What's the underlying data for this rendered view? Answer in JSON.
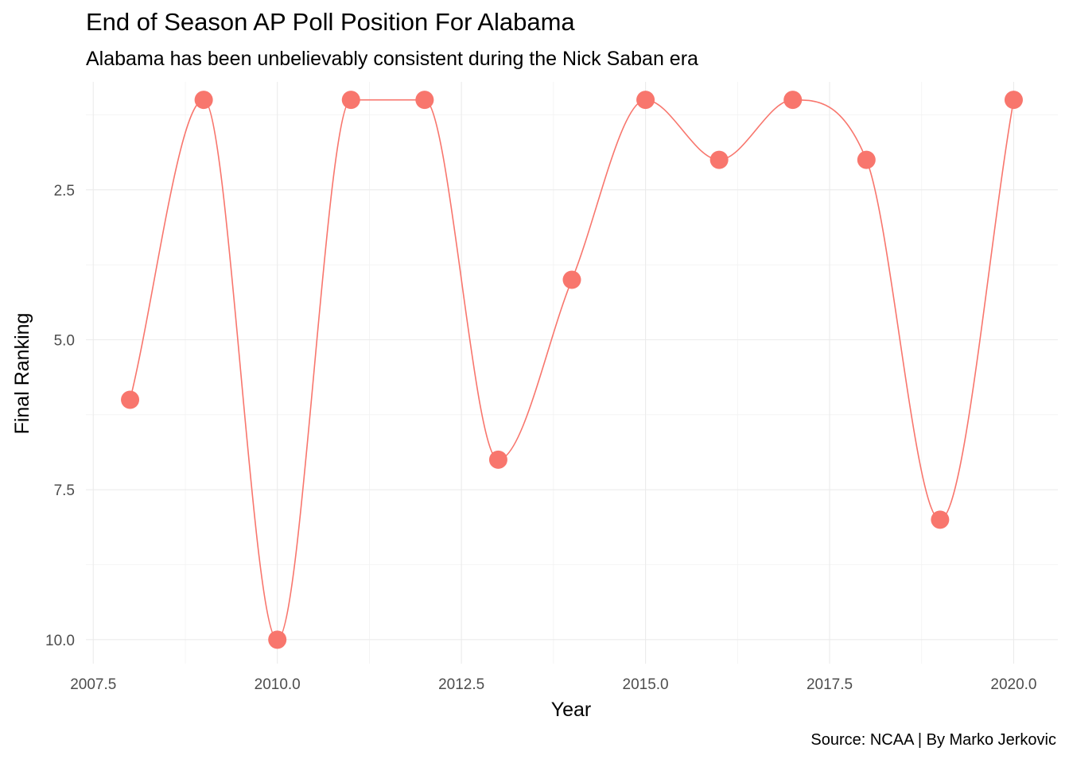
{
  "chart_data": {
    "type": "line",
    "title": "End of Season AP Poll Position For Alabama",
    "subtitle": "Alabama has been unbelievably consistent during the Nick Saban era",
    "caption": "Source: NCAA | By Marko Jerkovic",
    "xlabel": "Year",
    "ylabel": "Final Ranking",
    "x": [
      2008,
      2009,
      2010,
      2011,
      2012,
      2013,
      2014,
      2015,
      2016,
      2017,
      2018,
      2019,
      2020
    ],
    "y": [
      6,
      1,
      10,
      1,
      1,
      7,
      4,
      1,
      2,
      1,
      2,
      8,
      1
    ],
    "x_ticks": [
      "2007.5",
      "2010.0",
      "2012.5",
      "2015.0",
      "2017.5",
      "2020.0"
    ],
    "y_ticks": [
      "2.5",
      "5.0",
      "7.5",
      "10.0"
    ],
    "xlim": [
      2007.4,
      2020.6
    ],
    "ylim": [
      0.7,
      10.4
    ],
    "y_reversed": true,
    "smoothed": true,
    "grid": true,
    "color": "#F8766D"
  }
}
